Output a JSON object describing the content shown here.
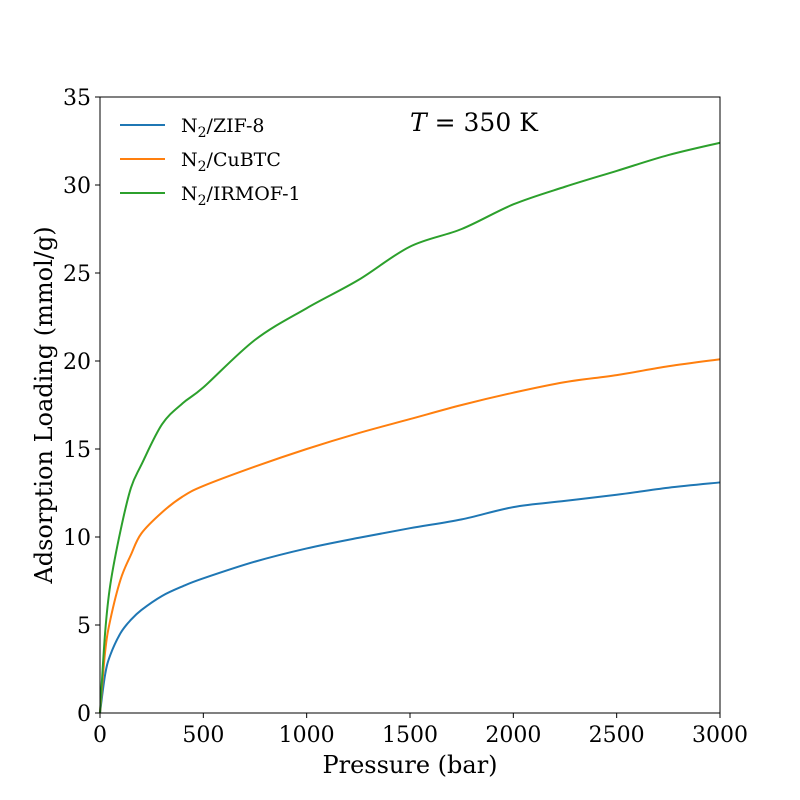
{
  "chart_data": {
    "type": "line",
    "xlabel": "Pressure (bar)",
    "ylabel": "Adsorption Loading (mmol/g)",
    "xlim": [
      0,
      3000
    ],
    "ylim": [
      0,
      35
    ],
    "xticks": [
      0,
      500,
      1000,
      1500,
      2000,
      2500,
      3000
    ],
    "yticks": [
      0,
      5,
      10,
      15,
      20,
      25,
      30,
      35
    ],
    "grid": false,
    "legend_position": "top-left",
    "annotation": {
      "var": "T",
      "text": " = 350 K"
    },
    "series": [
      {
        "name": "N2/ZIF-8",
        "label_base": "N",
        "label_sub": "2",
        "label_rest": "/ZIF-8",
        "color": "#1f77b4",
        "points": [
          [
            0,
            0
          ],
          [
            25,
            2.2
          ],
          [
            50,
            3.3
          ],
          [
            100,
            4.55
          ],
          [
            150,
            5.3
          ],
          [
            200,
            5.85
          ],
          [
            300,
            6.65
          ],
          [
            400,
            7.2
          ],
          [
            500,
            7.65
          ],
          [
            750,
            8.6
          ],
          [
            1000,
            9.35
          ],
          [
            1250,
            9.95
          ],
          [
            1500,
            10.5
          ],
          [
            1750,
            11.0
          ],
          [
            2000,
            11.7
          ],
          [
            2250,
            12.05
          ],
          [
            2500,
            12.4
          ],
          [
            2750,
            12.8
          ],
          [
            3000,
            13.1
          ]
        ]
      },
      {
        "name": "N2/CuBTC",
        "label_base": "N",
        "label_sub": "2",
        "label_rest": "/CuBTC",
        "color": "#ff7f0e",
        "points": [
          [
            0,
            0
          ],
          [
            25,
            3.5
          ],
          [
            50,
            5.3
          ],
          [
            100,
            7.6
          ],
          [
            150,
            9.0
          ],
          [
            200,
            10.2
          ],
          [
            300,
            11.4
          ],
          [
            400,
            12.3
          ],
          [
            500,
            12.9
          ],
          [
            750,
            14.0
          ],
          [
            1000,
            15.0
          ],
          [
            1250,
            15.9
          ],
          [
            1500,
            16.7
          ],
          [
            1750,
            17.5
          ],
          [
            2000,
            18.2
          ],
          [
            2250,
            18.8
          ],
          [
            2500,
            19.2
          ],
          [
            2750,
            19.7
          ],
          [
            3000,
            20.1
          ]
        ]
      },
      {
        "name": "N2/IRMOF-1",
        "label_base": "N",
        "label_sub": "2",
        "label_rest": "/IRMOF-1",
        "color": "#2ca02c",
        "points": [
          [
            0,
            0
          ],
          [
            25,
            4.6
          ],
          [
            50,
            7.3
          ],
          [
            100,
            10.4
          ],
          [
            150,
            12.8
          ],
          [
            200,
            14.1
          ],
          [
            300,
            16.4
          ],
          [
            400,
            17.6
          ],
          [
            500,
            18.5
          ],
          [
            750,
            21.2
          ],
          [
            1000,
            23.0
          ],
          [
            1250,
            24.6
          ],
          [
            1500,
            26.5
          ],
          [
            1750,
            27.5
          ],
          [
            2000,
            28.9
          ],
          [
            2250,
            29.9
          ],
          [
            2500,
            30.8
          ],
          [
            2750,
            31.7
          ],
          [
            3000,
            32.4
          ]
        ]
      }
    ]
  }
}
